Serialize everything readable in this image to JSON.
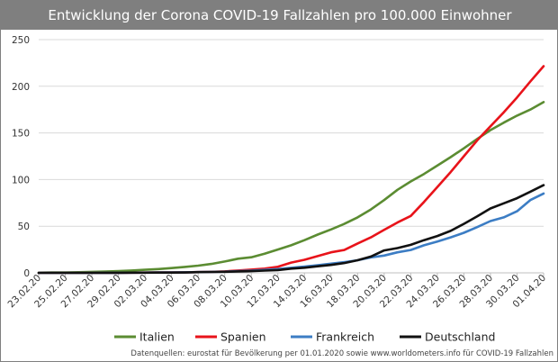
{
  "chart_data": {
    "type": "line",
    "title": "Entwicklung der Corona COVID-19 Fallzahlen pro 100.000 Einwohner",
    "ylim": [
      0,
      250
    ],
    "yticks": [
      "0",
      "50",
      "100",
      "150",
      "200",
      "250"
    ],
    "xtick_labels": [
      "23.02.20",
      "25.02.20",
      "27.02.20",
      "29.02.20",
      "02.03.20",
      "04.03.20",
      "06.03.20",
      "08.03.20",
      "10.03.20",
      "12.03.20",
      "14.03.20",
      "16.03.20",
      "18.03.20",
      "20.03.20",
      "22.03.20",
      "24.03.20",
      "26.03.20",
      "28.03.20",
      "30.03.20",
      "01.04.20"
    ],
    "categories": [
      "23.02.20",
      "24.02.20",
      "25.02.20",
      "26.02.20",
      "27.02.20",
      "28.02.20",
      "29.02.20",
      "01.03.20",
      "02.03.20",
      "03.03.20",
      "04.03.20",
      "05.03.20",
      "06.03.20",
      "07.03.20",
      "08.03.20",
      "09.03.20",
      "10.03.20",
      "11.03.20",
      "12.03.20",
      "13.03.20",
      "14.03.20",
      "15.03.20",
      "16.03.20",
      "17.03.20",
      "18.03.20",
      "19.03.20",
      "20.03.20",
      "21.03.20",
      "22.03.20",
      "23.03.20",
      "24.03.20",
      "25.03.20",
      "26.03.20",
      "27.03.20",
      "28.03.20",
      "29.03.20",
      "30.03.20",
      "31.03.20",
      "01.04.20"
    ],
    "series": [
      {
        "name": "Italien",
        "color": "#5b8c32",
        "values": [
          0.2,
          0.4,
          0.5,
          0.7,
          1.1,
          1.4,
          1.8,
          2.5,
          3.3,
          4.1,
          5.1,
          6.4,
          7.7,
          9.6,
          12.2,
          15.2,
          16.7,
          20.5,
          25.0,
          29.5,
          35.0,
          41.0,
          46.5,
          52.5,
          59.5,
          68.0,
          78.0,
          89.0,
          98.0,
          106.0,
          115.0,
          124.0,
          133.5,
          143.5,
          153.0,
          161.0,
          168.5,
          175.0,
          183.0
        ]
      },
      {
        "name": "Spanien",
        "color": "#e8131a",
        "values": [
          0,
          0,
          0,
          0,
          0,
          0.1,
          0.1,
          0.2,
          0.3,
          0.4,
          0.5,
          0.6,
          0.8,
          1.1,
          1.5,
          2.5,
          3.5,
          4.5,
          6.5,
          11.0,
          14.0,
          18.0,
          22.0,
          24.5,
          31.5,
          38.0,
          46.0,
          54.0,
          61.0,
          76.0,
          92.0,
          108.0,
          125.0,
          142.0,
          157.0,
          172.0,
          188.0,
          205.0,
          221.5
        ]
      },
      {
        "name": "Frankreich",
        "color": "#3c7dc4",
        "values": [
          0,
          0,
          0,
          0,
          0,
          0.1,
          0.1,
          0.2,
          0.3,
          0.4,
          0.5,
          0.6,
          0.8,
          1.0,
          1.3,
          1.8,
          2.4,
          3.2,
          4.1,
          5.4,
          6.7,
          8.2,
          9.8,
          11.5,
          13.5,
          16.5,
          18.5,
          22.0,
          24.5,
          29.5,
          33.5,
          38.0,
          43.0,
          49.0,
          55.5,
          59.5,
          66.0,
          78.0,
          85.0
        ]
      },
      {
        "name": "Deutschland",
        "color": "#111111",
        "values": [
          0,
          0,
          0,
          0,
          0,
          0.1,
          0.1,
          0.2,
          0.2,
          0.3,
          0.3,
          0.4,
          0.8,
          1.0,
          1.2,
          1.5,
          1.8,
          2.4,
          3.0,
          4.5,
          5.5,
          7.0,
          8.5,
          10.5,
          13.5,
          17.5,
          24.0,
          26.5,
          30.0,
          35.0,
          39.5,
          45.0,
          52.5,
          60.5,
          69.0,
          74.5,
          80.0,
          87.0,
          94.0
        ]
      }
    ],
    "legend_position": "bottom",
    "source": "Datenquellen: eurostat für Bevölkerung per 01.01.2020 sowie www.worldometers.info für COVID-19 Fallzahlen"
  }
}
